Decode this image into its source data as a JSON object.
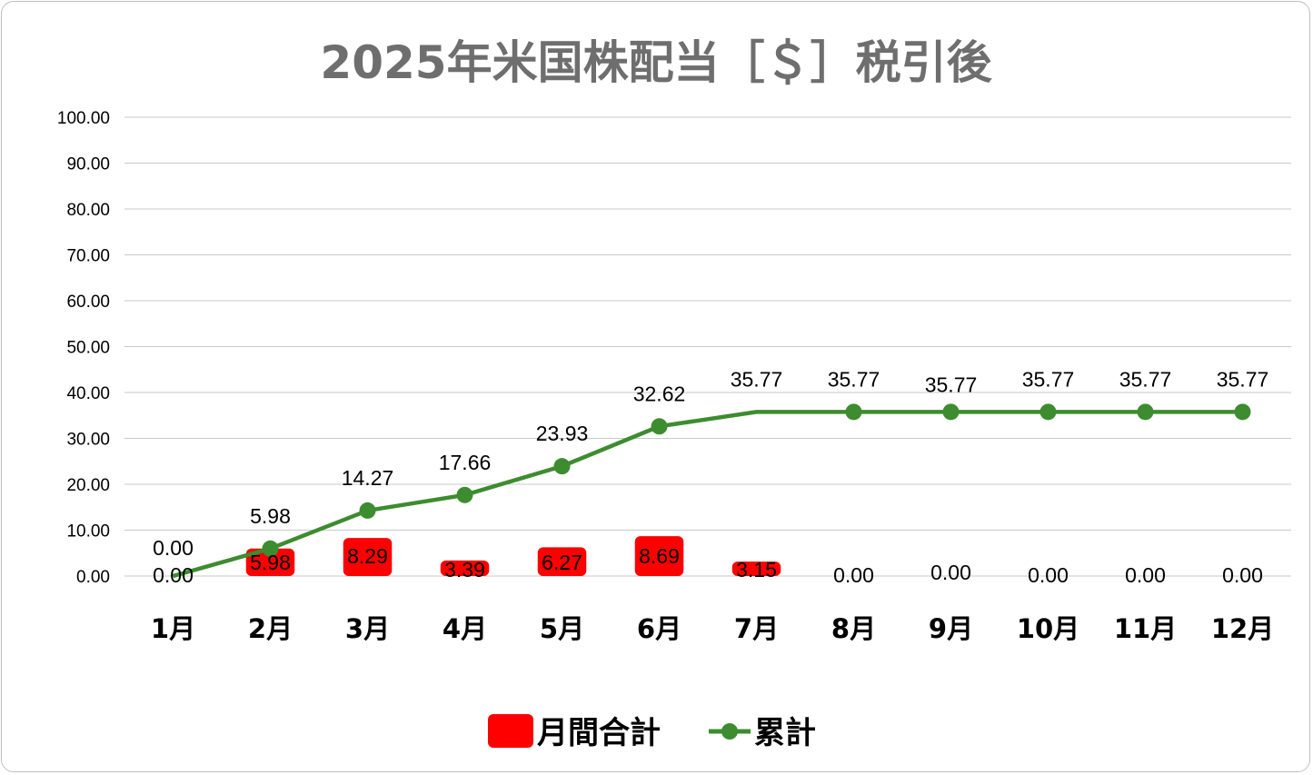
{
  "chart_data": {
    "type": "bar+line",
    "title": "2025年米国株配当［＄］税引後",
    "categories": [
      "1月",
      "2月",
      "3月",
      "4月",
      "5月",
      "6月",
      "7月",
      "8月",
      "9月",
      "10月",
      "11月",
      "12月"
    ],
    "series": [
      {
        "name": "月間合計",
        "type": "bar",
        "color": "#ff0000",
        "values": [
          0.0,
          5.98,
          8.29,
          3.39,
          6.27,
          8.69,
          3.15,
          0.0,
          0.0,
          0.0,
          0.0,
          0.0
        ],
        "labels": [
          "0.00",
          "5.98",
          "8.29",
          "3.39",
          "6.27",
          "8.69",
          "3.15",
          "0.00",
          "0.00",
          "0.00",
          "0.00",
          "0.00"
        ]
      },
      {
        "name": "累計",
        "type": "line",
        "color": "#3d8c2f",
        "values": [
          0.0,
          5.98,
          14.27,
          17.66,
          23.93,
          32.62,
          35.77,
          35.77,
          35.77,
          35.77,
          35.77,
          35.77
        ],
        "labels": [
          "0.00",
          "5.98",
          "14.27",
          "17.66",
          "23.93",
          "32.62",
          "35.77",
          "35.77",
          "35.77",
          "35.77",
          "35.77",
          "35.77"
        ]
      }
    ],
    "ylim": [
      0,
      100
    ],
    "yticks": [
      "0.00",
      "10.00",
      "20.00",
      "30.00",
      "40.00",
      "50.00",
      "60.00",
      "70.00",
      "80.00",
      "90.00",
      "100.00"
    ],
    "grid": true,
    "legend_position": "bottom"
  }
}
